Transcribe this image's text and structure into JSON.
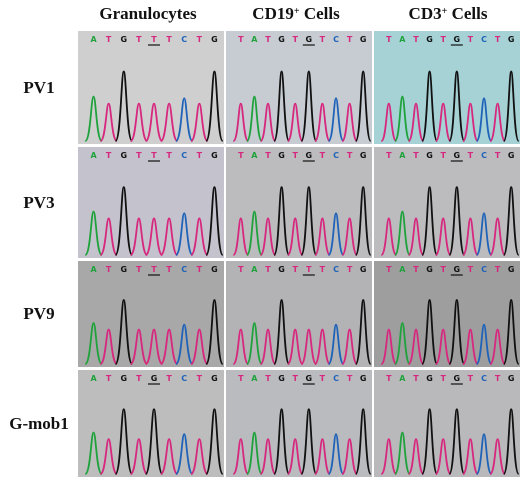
{
  "columns": [
    {
      "id": "gran",
      "label": "Granulocytes",
      "sup": "",
      "suffix": ""
    },
    {
      "id": "cd19",
      "label": "CD19",
      "sup": "+",
      "suffix": " Cells"
    },
    {
      "id": "cd3",
      "label": "CD3",
      "sup": "+",
      "suffix": " Cells"
    }
  ],
  "rows": [
    {
      "label": "PV1",
      "panels": [
        {
          "bases": [
            "A",
            "T",
            "G",
            "T",
            "T",
            "T",
            "C",
            "T",
            "G"
          ],
          "underline": 4,
          "bg": "#cfcfd0"
        },
        {
          "bases": [
            "T",
            "A",
            "T",
            "G",
            "T",
            "G",
            "T",
            "C",
            "T",
            "G"
          ],
          "underline": 5,
          "bg": "#c6ccd2"
        },
        {
          "bases": [
            "T",
            "A",
            "T",
            "G",
            "T",
            "G",
            "T",
            "C",
            "T",
            "G"
          ],
          "underline": 5,
          "bg": "#a6d2d6"
        }
      ]
    },
    {
      "label": "PV3",
      "panels": [
        {
          "bases": [
            "A",
            "T",
            "G",
            "T",
            "T",
            "T",
            "C",
            "T",
            "G"
          ],
          "underline": 4,
          "bg": "#c4c2cc"
        },
        {
          "bases": [
            "T",
            "A",
            "T",
            "G",
            "T",
            "G",
            "T",
            "C",
            "T",
            "G"
          ],
          "underline": 5,
          "bg": "#bcbcbe"
        },
        {
          "bases": [
            "T",
            "A",
            "T",
            "G",
            "T",
            "G",
            "T",
            "C",
            "T",
            "G"
          ],
          "underline": 5,
          "bg": "#bcbcbe"
        }
      ]
    },
    {
      "label": "PV9",
      "panels": [
        {
          "bases": [
            "A",
            "T",
            "G",
            "T",
            "T",
            "T",
            "C",
            "T",
            "G"
          ],
          "underline": 4,
          "bg": "#a8a8a8"
        },
        {
          "bases": [
            "T",
            "A",
            "T",
            "G",
            "T",
            "T",
            "T",
            "C",
            "T",
            "G"
          ],
          "underline": 5,
          "bg": "#b3b3b5"
        },
        {
          "bases": [
            "T",
            "A",
            "T",
            "G",
            "T",
            "G",
            "T",
            "C",
            "T",
            "G"
          ],
          "underline": 5,
          "bg": "#9e9e9e"
        }
      ]
    },
    {
      "label": "G-mob1",
      "panels": [
        {
          "bases": [
            "A",
            "T",
            "G",
            "T",
            "G",
            "T",
            "C",
            "T",
            "G"
          ],
          "underline": 4,
          "bg": "#bdbdbd"
        },
        {
          "bases": [
            "T",
            "A",
            "T",
            "G",
            "T",
            "G",
            "T",
            "C",
            "T",
            "G"
          ],
          "underline": 5,
          "bg": "#b9bbbf"
        },
        {
          "bases": [
            "T",
            "A",
            "T",
            "G",
            "T",
            "G",
            "T",
            "C",
            "T",
            "G"
          ],
          "underline": 5,
          "bg": "#b9b9bb"
        }
      ]
    }
  ],
  "base_colors": {
    "A": "#1fa23c",
    "T": "#d6287e",
    "G": "#111111",
    "C": "#1f63b8"
  }
}
